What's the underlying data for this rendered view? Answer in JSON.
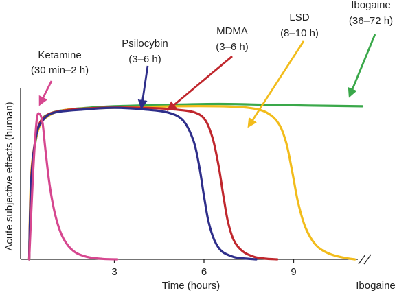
{
  "chart_data": {
    "type": "line",
    "xlabel": "Time (hours)",
    "ylabel": "Acute subjective effects (human)",
    "x_ticks": [
      3,
      6,
      9
    ],
    "xlim": [
      0,
      11.3
    ],
    "ylim": [
      0,
      1
    ],
    "axis_break_label": "Ibogaine",
    "grid": false,
    "legend": "none",
    "series": [
      {
        "name": "Ketamine",
        "duration": "30 min–2 h",
        "color": "#d6478f",
        "points": [
          [
            0.15,
            0.0
          ],
          [
            0.28,
            0.55
          ],
          [
            0.4,
            0.88
          ],
          [
            0.5,
            0.92
          ],
          [
            0.6,
            0.86
          ],
          [
            0.7,
            0.68
          ],
          [
            0.85,
            0.45
          ],
          [
            1.05,
            0.26
          ],
          [
            1.3,
            0.13
          ],
          [
            1.65,
            0.05
          ],
          [
            2.1,
            0.015
          ],
          [
            2.6,
            0.003
          ],
          [
            3.1,
            0.0
          ]
        ]
      },
      {
        "name": "Psilocybin",
        "duration": "3–6 h",
        "color": "#2e2e8a",
        "points": [
          [
            0.15,
            0.0
          ],
          [
            0.22,
            0.5
          ],
          [
            0.38,
            0.78
          ],
          [
            0.6,
            0.88
          ],
          [
            1.0,
            0.93
          ],
          [
            2.0,
            0.95
          ],
          [
            3.0,
            0.96
          ],
          [
            4.0,
            0.95
          ],
          [
            4.8,
            0.93
          ],
          [
            5.3,
            0.88
          ],
          [
            5.65,
            0.75
          ],
          [
            5.85,
            0.58
          ],
          [
            6.0,
            0.4
          ],
          [
            6.15,
            0.24
          ],
          [
            6.35,
            0.12
          ],
          [
            6.6,
            0.05
          ],
          [
            7.0,
            0.015
          ],
          [
            7.4,
            0.005
          ],
          [
            7.75,
            0.0
          ]
        ]
      },
      {
        "name": "MDMA",
        "duration": "3–6 h",
        "color": "#c0272d",
        "points": [
          [
            0.15,
            0.0
          ],
          [
            0.22,
            0.52
          ],
          [
            0.4,
            0.8
          ],
          [
            0.65,
            0.9
          ],
          [
            1.2,
            0.94
          ],
          [
            2.5,
            0.96
          ],
          [
            4.0,
            0.96
          ],
          [
            5.0,
            0.95
          ],
          [
            5.7,
            0.93
          ],
          [
            6.05,
            0.88
          ],
          [
            6.3,
            0.76
          ],
          [
            6.5,
            0.58
          ],
          [
            6.65,
            0.4
          ],
          [
            6.8,
            0.24
          ],
          [
            7.0,
            0.12
          ],
          [
            7.3,
            0.05
          ],
          [
            7.7,
            0.015
          ],
          [
            8.1,
            0.004
          ],
          [
            8.45,
            0.0
          ]
        ]
      },
      {
        "name": "LSD",
        "duration": "8–10 h",
        "color": "#f2bc1b",
        "points": [
          [
            0.15,
            0.0
          ],
          [
            0.22,
            0.55
          ],
          [
            0.45,
            0.82
          ],
          [
            0.8,
            0.91
          ],
          [
            1.5,
            0.95
          ],
          [
            3.0,
            0.96
          ],
          [
            5.0,
            0.97
          ],
          [
            6.5,
            0.97
          ],
          [
            7.5,
            0.96
          ],
          [
            8.1,
            0.93
          ],
          [
            8.5,
            0.86
          ],
          [
            8.75,
            0.74
          ],
          [
            8.95,
            0.56
          ],
          [
            9.15,
            0.36
          ],
          [
            9.4,
            0.2
          ],
          [
            9.75,
            0.09
          ],
          [
            10.2,
            0.035
          ],
          [
            10.7,
            0.01
          ],
          [
            11.05,
            0.0
          ]
        ]
      },
      {
        "name": "Ibogaine",
        "duration": "36–72 h",
        "color": "#3aa84a",
        "points": [
          [
            0.3,
            0.68
          ],
          [
            0.5,
            0.86
          ],
          [
            0.8,
            0.92
          ],
          [
            1.5,
            0.95
          ],
          [
            3.0,
            0.97
          ],
          [
            5.0,
            0.98
          ],
          [
            6.5,
            0.985
          ],
          [
            8.0,
            0.98
          ],
          [
            9.5,
            0.975
          ],
          [
            11.3,
            0.97
          ]
        ]
      }
    ]
  }
}
